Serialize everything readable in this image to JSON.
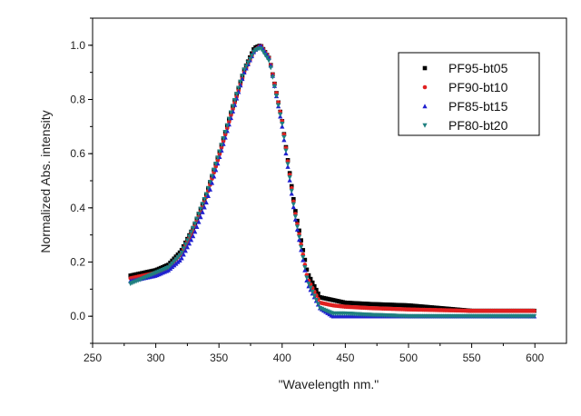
{
  "chart_data": {
    "type": "scatter",
    "title": "",
    "xlabel": "\"Wavelength nm.\"",
    "ylabel": "Normalized Abs. intensity",
    "xlim": [
      250,
      625
    ],
    "ylim": [
      -0.1,
      1.1
    ],
    "xticks": [
      250,
      300,
      350,
      400,
      450,
      500,
      550,
      600
    ],
    "yticks": [
      0.0,
      0.2,
      0.4,
      0.6,
      0.8,
      1.0
    ],
    "xtick_labels": [
      "250",
      "300",
      "350",
      "400",
      "450",
      "500",
      "550",
      "600"
    ],
    "ytick_labels": [
      "0.0",
      "0.2",
      "0.4",
      "0.6",
      "0.8",
      "1.0"
    ],
    "grid": false,
    "legend_position": "top-right",
    "x_range": [
      280,
      600
    ],
    "series": [
      {
        "name": "PF95-bt05",
        "color": "#000000",
        "marker": "square",
        "x": [
          280,
          290,
          300,
          310,
          320,
          330,
          340,
          350,
          360,
          370,
          378,
          383,
          390,
          400,
          410,
          420,
          430,
          440,
          450,
          470,
          500,
          550,
          600
        ],
        "values": [
          0.15,
          0.16,
          0.17,
          0.19,
          0.24,
          0.33,
          0.45,
          0.6,
          0.76,
          0.91,
          0.99,
          1.0,
          0.95,
          0.72,
          0.4,
          0.16,
          0.07,
          0.06,
          0.05,
          0.045,
          0.04,
          0.02,
          0.02
        ]
      },
      {
        "name": "PF90-bt10",
        "color": "#e02020",
        "marker": "circle",
        "x": [
          280,
          290,
          300,
          310,
          320,
          330,
          340,
          350,
          360,
          370,
          378,
          383,
          390,
          400,
          410,
          420,
          430,
          440,
          450,
          470,
          500,
          550,
          600
        ],
        "values": [
          0.14,
          0.15,
          0.16,
          0.18,
          0.23,
          0.32,
          0.44,
          0.59,
          0.75,
          0.9,
          0.98,
          1.0,
          0.95,
          0.72,
          0.39,
          0.14,
          0.05,
          0.04,
          0.035,
          0.03,
          0.025,
          0.02,
          0.02
        ]
      },
      {
        "name": "PF85-bt15",
        "color": "#2020d0",
        "marker": "triangle-up",
        "x": [
          280,
          290,
          300,
          310,
          320,
          330,
          340,
          350,
          360,
          370,
          378,
          383,
          390,
          400,
          410,
          420,
          430,
          440,
          450,
          470,
          500,
          550,
          600
        ],
        "values": [
          0.13,
          0.14,
          0.15,
          0.17,
          0.21,
          0.3,
          0.42,
          0.58,
          0.74,
          0.9,
          0.98,
          1.0,
          0.95,
          0.7,
          0.37,
          0.12,
          0.03,
          0.0,
          0.0,
          0.0,
          0.0,
          0.0,
          0.0
        ]
      },
      {
        "name": "PF80-bt20",
        "color": "#1f8080",
        "marker": "triangle-down",
        "x": [
          280,
          290,
          300,
          310,
          320,
          330,
          340,
          350,
          360,
          370,
          378,
          383,
          390,
          400,
          410,
          420,
          430,
          440,
          450,
          470,
          500,
          550,
          600
        ],
        "values": [
          0.12,
          0.14,
          0.16,
          0.18,
          0.23,
          0.33,
          0.45,
          0.6,
          0.76,
          0.91,
          0.98,
          0.99,
          0.94,
          0.71,
          0.38,
          0.13,
          0.03,
          0.01,
          0.01,
          0.005,
          0.0,
          0.0,
          0.0
        ]
      }
    ]
  }
}
